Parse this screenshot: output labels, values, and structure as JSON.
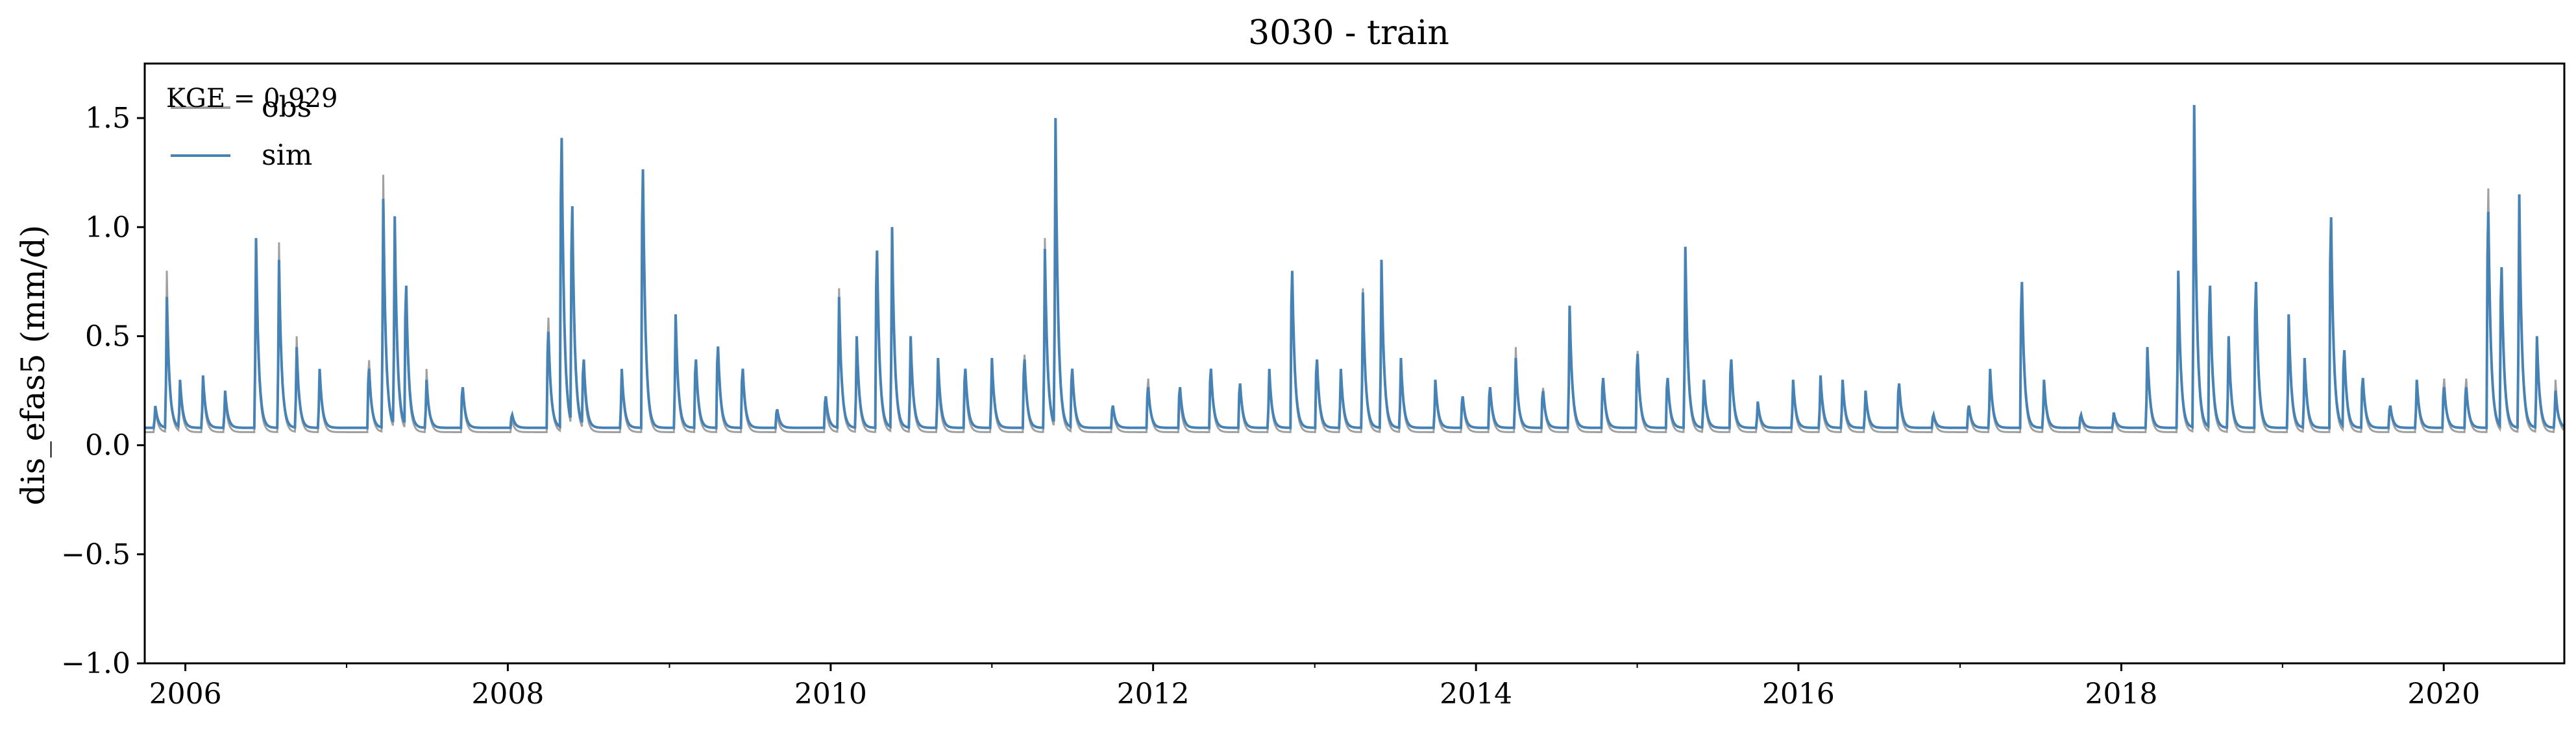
{
  "chart_data": {
    "type": "line",
    "title": "3030 - train",
    "xlabel": "",
    "ylabel": "dis_efas5 (mm/d)",
    "xlim": [
      "2005-10-01",
      "2020-09-30"
    ],
    "ylim": [
      -1.0,
      1.75
    ],
    "x_ticks": [
      "2006",
      "2008",
      "2010",
      "2012",
      "2014",
      "2016",
      "2018",
      "2020"
    ],
    "y_ticks": [
      "−1.0",
      "−0.5",
      "0.0",
      "0.5",
      "1.0",
      "1.5"
    ],
    "annotation": "KGE = 0.929",
    "legend": {
      "position": "top-left",
      "entries": [
        "obs",
        "sim"
      ]
    },
    "colors": {
      "obs": "#a0a0a0",
      "sim": "#4682b4"
    },
    "grid": false,
    "base_flow": 0.08,
    "series": [
      {
        "name": "obs",
        "peaks": [
          [
            "2005-10-25",
            0.17
          ],
          [
            "2005-11-20",
            0.8
          ],
          [
            "2005-12-20",
            0.28
          ],
          [
            "2006-02-10",
            0.3
          ],
          [
            "2006-04-01",
            0.22
          ],
          [
            "2006-06-10",
            0.9
          ],
          [
            "2006-08-01",
            0.93
          ],
          [
            "2006-09-10",
            0.5
          ],
          [
            "2006-11-01",
            0.35
          ],
          [
            "2007-02-20",
            0.45
          ],
          [
            "2007-03-25",
            1.24
          ],
          [
            "2007-04-20",
            1.0
          ],
          [
            "2007-05-15",
            0.8
          ],
          [
            "2007-07-01",
            0.35
          ],
          [
            "2007-09-20",
            0.3
          ],
          [
            "2008-01-10",
            0.12
          ],
          [
            "2008-04-01",
            0.68
          ],
          [
            "2008-05-01",
            1.65
          ],
          [
            "2008-05-25",
            1.25
          ],
          [
            "2008-06-20",
            0.4
          ],
          [
            "2008-09-15",
            0.35
          ],
          [
            "2008-11-01",
            1.45
          ],
          [
            "2009-01-15",
            0.6
          ],
          [
            "2009-03-01",
            0.45
          ],
          [
            "2009-04-20",
            0.52
          ],
          [
            "2009-06-15",
            0.4
          ],
          [
            "2009-09-01",
            0.15
          ],
          [
            "2009-12-20",
            0.2
          ],
          [
            "2010-01-20",
            0.72
          ],
          [
            "2010-03-01",
            0.5
          ],
          [
            "2010-04-15",
            1.02
          ],
          [
            "2010-05-20",
            1.0
          ],
          [
            "2010-07-01",
            0.5
          ],
          [
            "2010-09-01",
            0.35
          ],
          [
            "2010-11-01",
            0.35
          ],
          [
            "2011-01-01",
            0.4
          ],
          [
            "2011-03-15",
            0.48
          ],
          [
            "2011-05-01",
            0.95
          ],
          [
            "2011-05-25",
            1.5
          ],
          [
            "2011-07-01",
            0.4
          ],
          [
            "2011-10-01",
            0.2
          ],
          [
            "2011-12-20",
            0.35
          ],
          [
            "2012-03-01",
            0.25
          ],
          [
            "2012-05-10",
            0.4
          ],
          [
            "2012-07-15",
            0.32
          ],
          [
            "2012-09-20",
            0.35
          ],
          [
            "2012-11-10",
            0.92
          ],
          [
            "2013-01-05",
            0.45
          ],
          [
            "2013-03-01",
            0.35
          ],
          [
            "2013-04-20",
            0.72
          ],
          [
            "2013-06-01",
            0.85
          ],
          [
            "2013-07-15",
            0.4
          ],
          [
            "2013-10-01",
            0.3
          ],
          [
            "2013-12-01",
            0.25
          ],
          [
            "2014-02-01",
            0.3
          ],
          [
            "2014-04-01",
            0.45
          ],
          [
            "2014-06-01",
            0.3
          ],
          [
            "2014-08-01",
            0.63
          ],
          [
            "2014-10-15",
            0.35
          ],
          [
            "2015-01-01",
            0.5
          ],
          [
            "2015-03-10",
            0.35
          ],
          [
            "2015-04-20",
            0.9
          ],
          [
            "2015-06-01",
            0.3
          ],
          [
            "2015-08-01",
            0.45
          ],
          [
            "2015-10-01",
            0.2
          ],
          [
            "2015-12-20",
            0.3
          ],
          [
            "2016-02-20",
            0.3
          ],
          [
            "2016-04-10",
            0.3
          ],
          [
            "2016-06-01",
            0.25
          ],
          [
            "2016-08-15",
            0.3
          ],
          [
            "2016-11-01",
            0.15
          ],
          [
            "2017-01-20",
            0.2
          ],
          [
            "2017-03-10",
            0.35
          ],
          [
            "2017-05-20",
            0.85
          ],
          [
            "2017-07-10",
            0.3
          ],
          [
            "2017-10-01",
            0.15
          ],
          [
            "2017-12-15",
            0.15
          ],
          [
            "2018-03-01",
            0.45
          ],
          [
            "2018-05-10",
            0.8
          ],
          [
            "2018-06-15",
            1.55
          ],
          [
            "2018-07-20",
            0.8
          ],
          [
            "2018-09-01",
            0.5
          ],
          [
            "2018-11-01",
            0.85
          ],
          [
            "2019-01-15",
            0.6
          ],
          [
            "2019-02-20",
            0.4
          ],
          [
            "2019-04-20",
            1.2
          ],
          [
            "2019-05-20",
            0.5
          ],
          [
            "2019-07-01",
            0.35
          ],
          [
            "2019-09-01",
            0.2
          ],
          [
            "2019-11-01",
            0.3
          ],
          [
            "2020-01-01",
            0.35
          ],
          [
            "2020-02-20",
            0.35
          ],
          [
            "2020-04-10",
            1.38
          ],
          [
            "2020-05-10",
            0.95
          ],
          [
            "2020-06-20",
            1.15
          ],
          [
            "2020-07-30",
            0.5
          ],
          [
            "2020-09-10",
            0.3
          ]
        ]
      },
      {
        "name": "sim",
        "peaks": [
          [
            "2005-10-25",
            0.18
          ],
          [
            "2005-11-20",
            0.68
          ],
          [
            "2005-12-20",
            0.3
          ],
          [
            "2006-02-10",
            0.32
          ],
          [
            "2006-04-01",
            0.25
          ],
          [
            "2006-06-10",
            0.95
          ],
          [
            "2006-08-01",
            0.85
          ],
          [
            "2006-09-10",
            0.45
          ],
          [
            "2006-11-01",
            0.35
          ],
          [
            "2007-02-20",
            0.4
          ],
          [
            "2007-03-25",
            1.13
          ],
          [
            "2007-04-20",
            1.05
          ],
          [
            "2007-05-15",
            0.85
          ],
          [
            "2007-07-01",
            0.3
          ],
          [
            "2007-09-20",
            0.3
          ],
          [
            "2008-01-10",
            0.15
          ],
          [
            "2008-04-01",
            0.6
          ],
          [
            "2008-05-01",
            1.65
          ],
          [
            "2008-05-25",
            1.28
          ],
          [
            "2008-06-20",
            0.45
          ],
          [
            "2008-09-15",
            0.35
          ],
          [
            "2008-11-01",
            1.48
          ],
          [
            "2009-01-15",
            0.6
          ],
          [
            "2009-03-01",
            0.45
          ],
          [
            "2009-04-20",
            0.52
          ],
          [
            "2009-06-15",
            0.4
          ],
          [
            "2009-09-01",
            0.18
          ],
          [
            "2009-12-20",
            0.25
          ],
          [
            "2010-01-20",
            0.68
          ],
          [
            "2010-03-01",
            0.5
          ],
          [
            "2010-04-15",
            1.04
          ],
          [
            "2010-05-20",
            1.0
          ],
          [
            "2010-07-01",
            0.5
          ],
          [
            "2010-09-01",
            0.4
          ],
          [
            "2010-11-01",
            0.4
          ],
          [
            "2011-01-01",
            0.4
          ],
          [
            "2011-03-15",
            0.45
          ],
          [
            "2011-05-01",
            0.9
          ],
          [
            "2011-05-25",
            1.5
          ],
          [
            "2011-07-01",
            0.4
          ],
          [
            "2011-10-01",
            0.2
          ],
          [
            "2011-12-20",
            0.3
          ],
          [
            "2012-03-01",
            0.3
          ],
          [
            "2012-05-10",
            0.4
          ],
          [
            "2012-07-15",
            0.32
          ],
          [
            "2012-09-20",
            0.35
          ],
          [
            "2012-11-10",
            0.93
          ],
          [
            "2013-01-05",
            0.45
          ],
          [
            "2013-03-01",
            0.35
          ],
          [
            "2013-04-20",
            0.7
          ],
          [
            "2013-06-01",
            0.85
          ],
          [
            "2013-07-15",
            0.4
          ],
          [
            "2013-10-01",
            0.3
          ],
          [
            "2013-12-01",
            0.25
          ],
          [
            "2014-02-01",
            0.3
          ],
          [
            "2014-04-01",
            0.4
          ],
          [
            "2014-06-01",
            0.28
          ],
          [
            "2014-08-01",
            0.64
          ],
          [
            "2014-10-15",
            0.35
          ],
          [
            "2015-01-01",
            0.48
          ],
          [
            "2015-03-10",
            0.35
          ],
          [
            "2015-04-20",
            0.91
          ],
          [
            "2015-06-01",
            0.3
          ],
          [
            "2015-08-01",
            0.45
          ],
          [
            "2015-10-01",
            0.2
          ],
          [
            "2015-12-20",
            0.3
          ],
          [
            "2016-02-20",
            0.32
          ],
          [
            "2016-04-10",
            0.3
          ],
          [
            "2016-06-01",
            0.25
          ],
          [
            "2016-08-15",
            0.32
          ],
          [
            "2016-11-01",
            0.15
          ],
          [
            "2017-01-20",
            0.2
          ],
          [
            "2017-03-10",
            0.35
          ],
          [
            "2017-05-20",
            0.87
          ],
          [
            "2017-07-10",
            0.3
          ],
          [
            "2017-10-01",
            0.15
          ],
          [
            "2017-12-15",
            0.15
          ],
          [
            "2018-03-01",
            0.45
          ],
          [
            "2018-05-10",
            0.8
          ],
          [
            "2018-06-15",
            1.56
          ],
          [
            "2018-07-20",
            0.85
          ],
          [
            "2018-09-01",
            0.5
          ],
          [
            "2018-11-01",
            0.87
          ],
          [
            "2019-01-15",
            0.6
          ],
          [
            "2019-02-20",
            0.4
          ],
          [
            "2019-04-20",
            1.22
          ],
          [
            "2019-05-20",
            0.5
          ],
          [
            "2019-07-01",
            0.35
          ],
          [
            "2019-09-01",
            0.2
          ],
          [
            "2019-11-01",
            0.3
          ],
          [
            "2020-01-01",
            0.3
          ],
          [
            "2020-02-20",
            0.3
          ],
          [
            "2020-04-10",
            1.25
          ],
          [
            "2020-05-10",
            0.95
          ],
          [
            "2020-06-20",
            1.15
          ],
          [
            "2020-07-30",
            0.5
          ],
          [
            "2020-09-10",
            0.25
          ]
        ]
      }
    ]
  }
}
